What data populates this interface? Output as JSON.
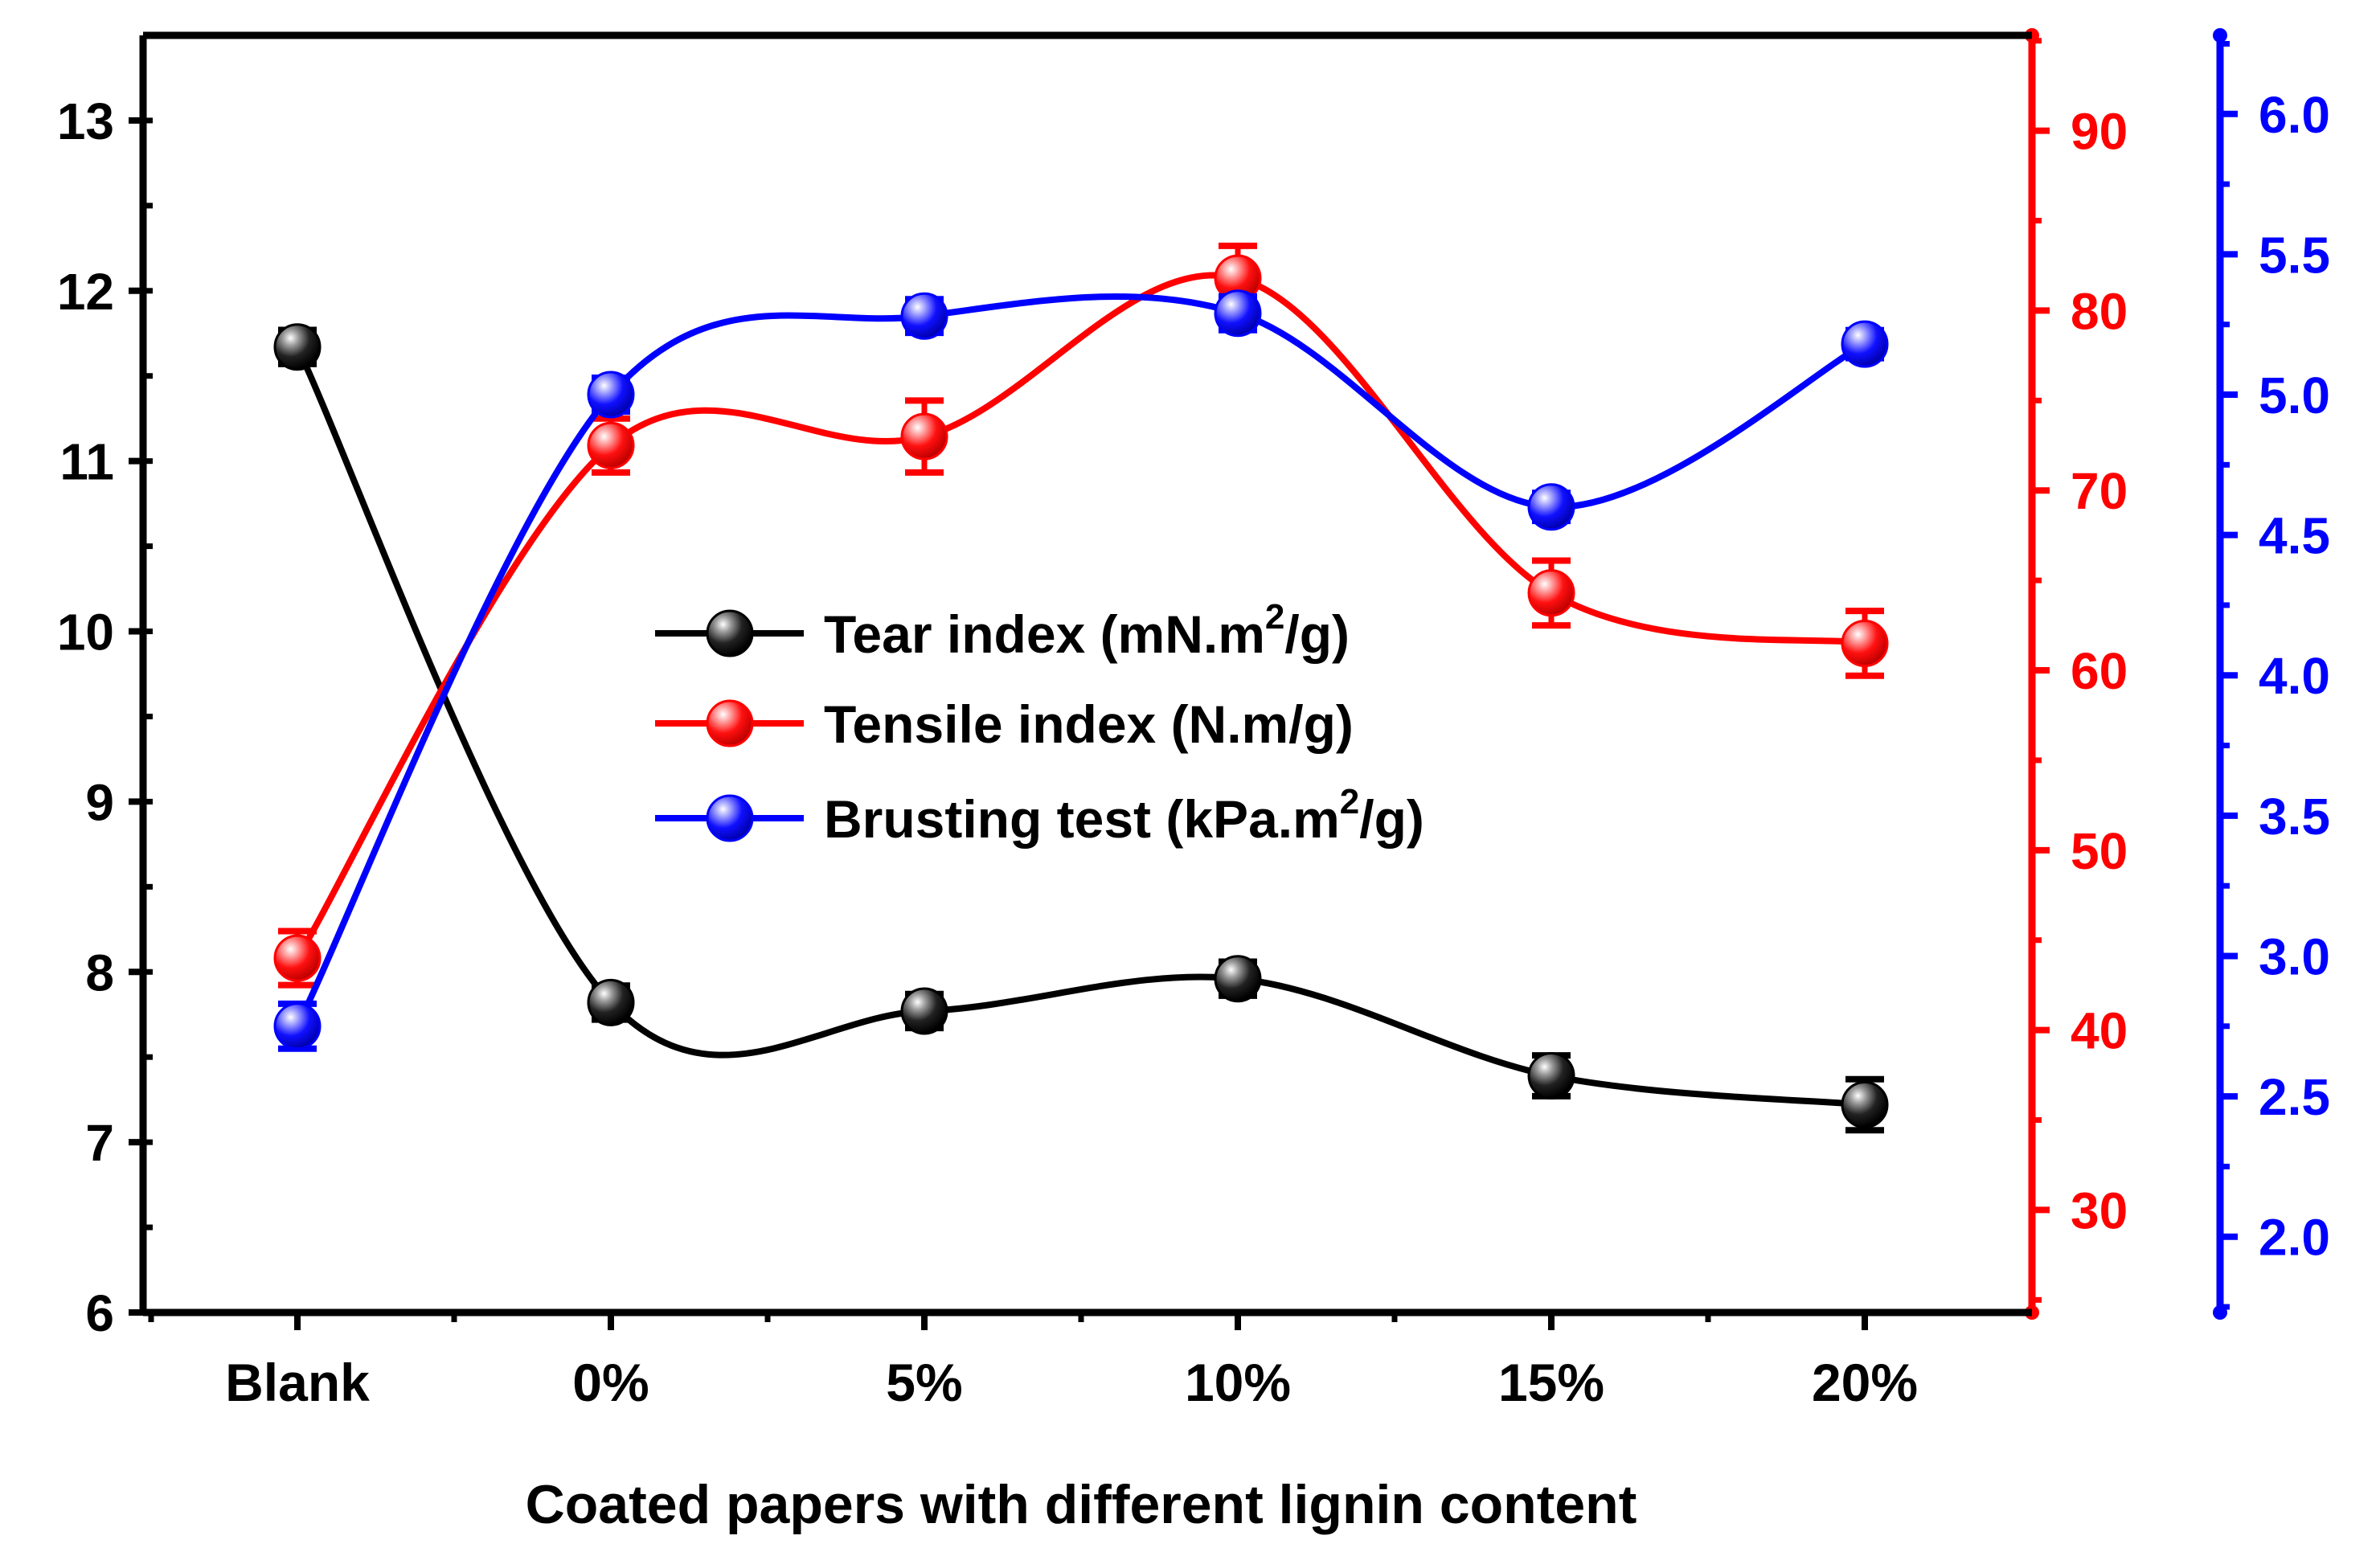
{
  "chart_data": {
    "type": "line",
    "title": "",
    "xlabel": "Coated papers with different lignin content",
    "categories": [
      "Blank",
      "0%",
      "5%",
      "10%",
      "15%",
      "20%"
    ],
    "axes": {
      "left": {
        "label": "",
        "ylim": [
          6,
          13.5
        ],
        "ticks": [
          6,
          7,
          8,
          9,
          10,
          11,
          12,
          13
        ],
        "labels": [
          "6",
          "7",
          "8",
          "9",
          "10",
          "11",
          "12",
          "13"
        ],
        "color": "#000000"
      },
      "right_red": {
        "label": "",
        "ylim": [
          24.3,
          95.3
        ],
        "ticks": [
          30,
          40,
          50,
          60,
          70,
          80,
          90
        ],
        "labels": [
          "30",
          "40",
          "50",
          "60",
          "70",
          "80",
          "90"
        ],
        "color": "#ff0000"
      },
      "right_blue": {
        "label": "",
        "ylim": [
          1.73,
          6.28
        ],
        "ticks": [
          2.0,
          2.5,
          3.0,
          3.5,
          4.0,
          4.5,
          5.0,
          5.5,
          6.0
        ],
        "labels": [
          "2.0",
          "2.5",
          "3.0",
          "3.5",
          "4.0",
          "4.5",
          "5.0",
          "5.5",
          "6.0"
        ],
        "color": "#0000ff"
      }
    },
    "series": [
      {
        "name": "Tear index (mN.m",
        "sup": "2",
        "name_end": "/g)",
        "axis": "left",
        "color": "#000000",
        "values": [
          11.67,
          7.82,
          7.77,
          7.96,
          7.39,
          7.22
        ],
        "errors": [
          0.1,
          0.1,
          0.1,
          0.1,
          0.12,
          0.15
        ]
      },
      {
        "name": "Tensile index (N.m/g)",
        "sup": "",
        "name_end": "",
        "axis": "right_red",
        "color": "#ff0000",
        "values": [
          44.0,
          72.5,
          73.0,
          81.8,
          64.3,
          61.5
        ],
        "errors": [
          1.5,
          1.5,
          2.0,
          1.8,
          1.8,
          1.8
        ]
      },
      {
        "name": "Brusting test (kPa.m",
        "sup": "2",
        "name_end": "/g)",
        "axis": "right_blue",
        "color": "#0000ff",
        "values": [
          2.75,
          5.0,
          5.28,
          5.29,
          4.6,
          5.18
        ],
        "errors": [
          0.08,
          0.06,
          0.06,
          0.06,
          0.05,
          0.05
        ]
      }
    ],
    "legend_position": "center"
  }
}
